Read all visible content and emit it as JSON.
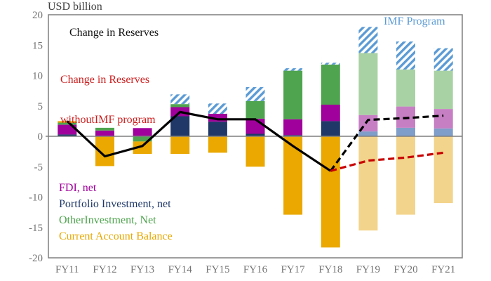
{
  "header": {
    "unit_label": "USD billion"
  },
  "annotations": {
    "reserves_label": "Change in Reserves",
    "without_imf_line1": "Change in Reserves",
    "without_imf_line2": "withoutIMF program",
    "imf_program_label": "IMF Program"
  },
  "legend_keys": [
    "fdi",
    "portfolio",
    "other",
    "cab"
  ],
  "colors": {
    "axis": "#7f7f7f",
    "tick_text": "#737373",
    "reserves_line": "#000000",
    "without_imf_line": "#c80000",
    "imf_hatch": "#5b9bd5"
  },
  "chart_data": {
    "type": "bar",
    "subtype": "stacked-bar-with-lines",
    "title": "USD billion",
    "unit": "USD billion",
    "categories": [
      "FY11",
      "FY12",
      "FY13",
      "FY14",
      "FY15",
      "FY16",
      "FY17",
      "FY18",
      "FY19",
      "FY20",
      "FY21"
    ],
    "ylim": [
      -20,
      20
    ],
    "yticks": [
      20,
      15,
      10,
      5,
      0,
      -5,
      -10,
      -15,
      -20
    ],
    "grid": false,
    "projection_start": "FY19",
    "series": [
      {
        "key": "portfolio",
        "name": "Portfolio Investment, net",
        "color": "#1f3868",
        "projection_color": "#7f9ec9",
        "values": [
          0.3,
          0,
          0,
          3.3,
          2.4,
          0.4,
          0.2,
          2.5,
          0.8,
          1.4,
          1.3
        ]
      },
      {
        "key": "fdi",
        "name": "FDI, net",
        "color": "#a0009b",
        "projection_color": "#c77fc4",
        "values": [
          1.6,
          0.95,
          1.35,
          1.5,
          1.3,
          2.5,
          2.6,
          2.7,
          2.7,
          3.5,
          3.2
        ]
      },
      {
        "key": "other",
        "name": "OtherInvestment, Net",
        "color": "#4fa44f",
        "projection_color": "#a9d2a4",
        "values": [
          0.35,
          0.45,
          -0.85,
          0.5,
          0,
          2.9,
          8.0,
          6.6,
          10.2,
          6.1,
          6.3
        ]
      },
      {
        "key": "cab",
        "name": "Current Account Balance",
        "color": "#eaa800",
        "projection_color": "#f3d48c",
        "values": [
          0.25,
          -4.9,
          -2.05,
          -2.9,
          -2.7,
          -5.0,
          -12.9,
          -18.3,
          -15.5,
          -12.9,
          -11.0
        ]
      },
      {
        "key": "imf",
        "name": "IMF Program",
        "color": "#5b9bd5",
        "hatch": true,
        "values": [
          0,
          0,
          0,
          1.6,
          1.7,
          2.3,
          0.4,
          0.3,
          4.3,
          4.6,
          3.7
        ]
      }
    ],
    "lines": [
      {
        "key": "reserves",
        "name": "Change in Reserves",
        "color": "#000000",
        "dash": "solid",
        "categories": [
          "FY11",
          "FY12",
          "FY13",
          "FY14",
          "FY15",
          "FY16",
          "FY17",
          "FY18"
        ],
        "values": [
          2.5,
          -3.3,
          -1.6,
          4.0,
          2.8,
          2.8,
          -1.6,
          -5.7
        ]
      },
      {
        "key": "reserves-projection",
        "name": "Change in Reserves",
        "color": "#000000",
        "dash": "dashed",
        "categories": [
          "FY18",
          "FY19",
          "FY20",
          "FY21"
        ],
        "values": [
          -5.7,
          2.7,
          3.0,
          3.4
        ]
      },
      {
        "key": "without-imf",
        "name": "Change in Reserves withoutIMF program",
        "color": "#c80000",
        "dash": "dashed",
        "categories": [
          "FY18",
          "FY19",
          "FY20",
          "FY21"
        ],
        "values": [
          -5.7,
          -4.0,
          -3.5,
          -2.7
        ]
      }
    ]
  }
}
